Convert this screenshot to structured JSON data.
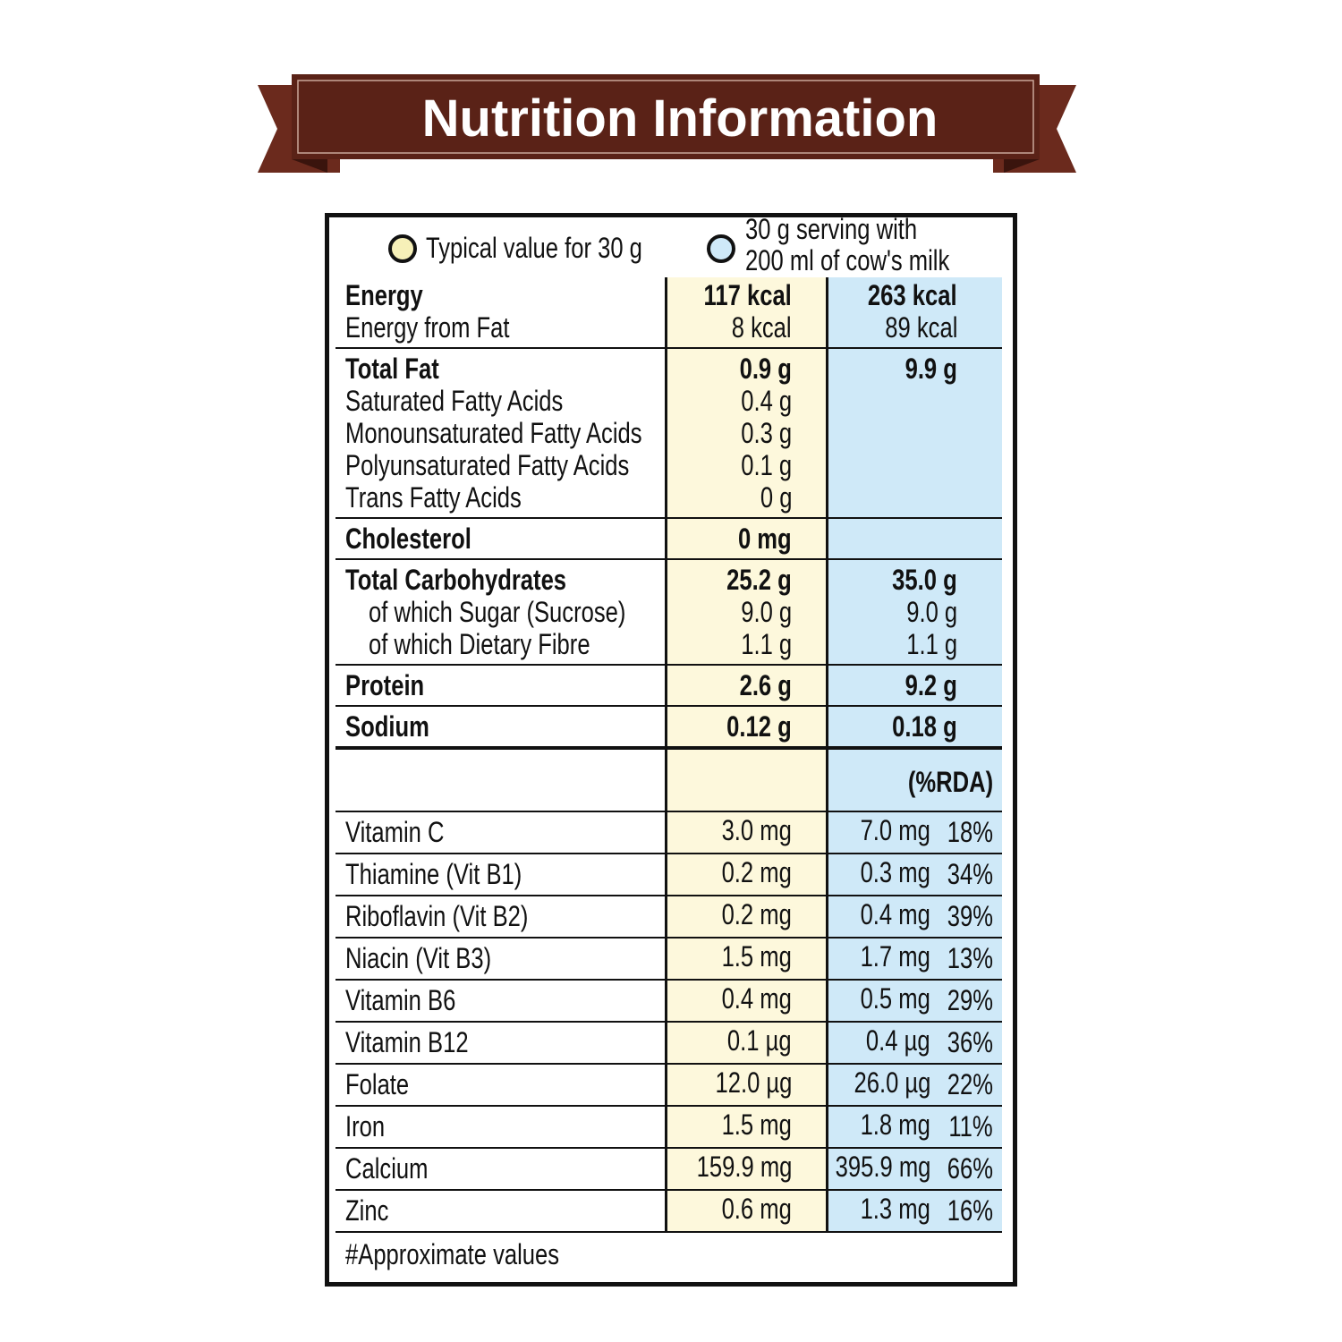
{
  "header": {
    "title": "Nutrition Information"
  },
  "legend": {
    "per_30g": "Typical value for 30 g",
    "with_milk": [
      "30 g serving with",
      "200 ml of cow's milk"
    ]
  },
  "groups": [
    {
      "rows": [
        {
          "label": "Energy",
          "per_30g": "117 kcal",
          "with_milk": "263 kcal"
        },
        {
          "label": "Energy from Fat",
          "per_30g": "8 kcal",
          "with_milk": "89 kcal"
        }
      ]
    },
    {
      "rows": [
        {
          "label": "Total Fat",
          "per_30g": "0.9 g",
          "with_milk": "9.9 g"
        },
        {
          "label": "Saturated Fatty Acids",
          "per_30g": "0.4 g"
        },
        {
          "label": "Monounsaturated Fatty Acids",
          "per_30g": "0.3 g"
        },
        {
          "label": "Polyunsaturated Fatty Acids",
          "per_30g": "0.1 g"
        },
        {
          "label": "Trans Fatty Acids",
          "per_30g": "0 g"
        }
      ]
    },
    {
      "rows": [
        {
          "label": "Cholesterol",
          "per_30g": "0 mg"
        }
      ]
    },
    {
      "indented": true,
      "rows": [
        {
          "label": "Total Carbohydrates",
          "per_30g": "25.2 g",
          "with_milk": "35.0 g"
        },
        {
          "label": "of which Sugar (Sucrose)",
          "per_30g": "9.0 g",
          "with_milk": "9.0 g"
        },
        {
          "label": "of which Dietary Fibre",
          "per_30g": "1.1 g",
          "with_milk": "1.1 g"
        }
      ]
    },
    {
      "rows": [
        {
          "label": "Protein",
          "per_30g": "2.6 g",
          "with_milk": "9.2 g"
        }
      ]
    },
    {
      "rows": [
        {
          "label": "Sodium",
          "per_30g": "0.12 g",
          "with_milk": "0.18 g"
        }
      ]
    }
  ],
  "rda_header": "(%RDA)",
  "vitamins": [
    {
      "label": "Vitamin C",
      "per_30g": "3.0 mg",
      "with_milk": "7.0 mg",
      "rda": "18%"
    },
    {
      "label": "Thiamine (Vit B1)",
      "per_30g": "0.2 mg",
      "with_milk": "0.3 mg",
      "rda": "34%"
    },
    {
      "label": "Riboflavin (Vit B2)",
      "per_30g": "0.2 mg",
      "with_milk": "0.4 mg",
      "rda": "39%"
    },
    {
      "label": "Niacin (Vit B3)",
      "per_30g": "1.5 mg",
      "with_milk": "1.7 mg",
      "rda": "13%"
    },
    {
      "label": "Vitamin B6",
      "per_30g": "0.4 mg",
      "with_milk": "0.5 mg",
      "rda": "29%"
    },
    {
      "label": "Vitamin B12",
      "per_30g": "0.1 µg",
      "with_milk": "0.4 µg",
      "rda": "36%"
    },
    {
      "label": "Folate",
      "per_30g": "12.0 µg",
      "with_milk": "26.0 µg",
      "rda": "22%"
    },
    {
      "label": "Iron",
      "per_30g": "1.5 mg",
      "with_milk": "1.8 mg",
      "rda": "11%"
    },
    {
      "label": "Calcium",
      "per_30g": "159.9 mg",
      "with_milk": "395.9 mg",
      "rda": "66%"
    },
    {
      "label": "Zinc",
      "per_30g": "0.6 mg",
      "with_milk": "1.3 mg",
      "rda": "16%"
    }
  ],
  "footer": "#Approximate values"
}
